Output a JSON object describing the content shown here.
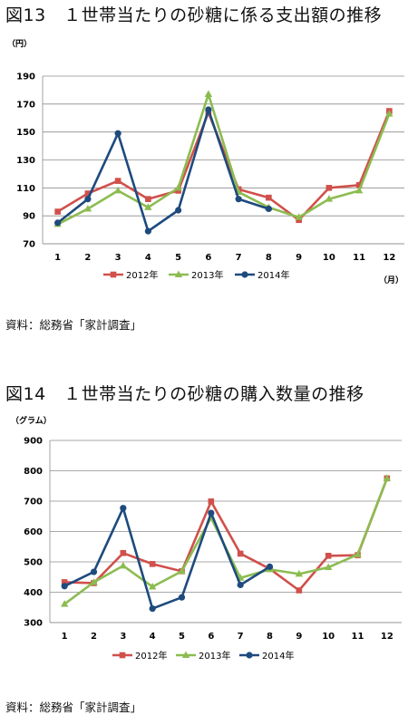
{
  "figures": [
    {
      "title": "図13　１世帯当たりの砂糖に係る支出額の推移",
      "source": "資料：総務省「家計調査」"
    },
    {
      "title": "図14　１世帯当たりの砂糖の購入数量の推移",
      "source": "資料：総務省「家計調査」"
    }
  ],
  "chart_data": [
    {
      "type": "line",
      "title": "図13　１世帯当たりの砂糖に係る支出額の推移",
      "ylabel": "（円）",
      "xlabel": "（月）",
      "categories": [
        "1",
        "2",
        "3",
        "4",
        "5",
        "6",
        "7",
        "8",
        "9",
        "10",
        "11",
        "12"
      ],
      "ylim": [
        70,
        190
      ],
      "yticks": [
        70,
        90,
        110,
        130,
        150,
        170,
        190
      ],
      "grid": "horizontal",
      "legend": "bottom",
      "series": [
        {
          "name": "2012年",
          "color": "#d0504b",
          "marker": "square",
          "values": [
            93,
            106,
            115,
            102,
            108,
            164,
            109,
            103,
            87,
            110,
            112,
            165
          ]
        },
        {
          "name": "2013年",
          "color": "#8cbc50",
          "marker": "triangle",
          "values": [
            84,
            95,
            108,
            96,
            110,
            177,
            107,
            96,
            89,
            102,
            108,
            163
          ]
        },
        {
          "name": "2014年",
          "color": "#1e4a7e",
          "marker": "circle",
          "values": [
            85,
            102,
            149,
            79,
            94,
            166,
            102,
            95,
            null,
            null,
            null,
            null
          ]
        }
      ]
    },
    {
      "type": "line",
      "title": "図14　１世帯当たりの砂糖の購入数量の推移",
      "ylabel": "（グラム）",
      "xlabel": "",
      "categories": [
        "1",
        "2",
        "3",
        "4",
        "5",
        "6",
        "7",
        "8",
        "9",
        "10",
        "11",
        "12"
      ],
      "ylim": [
        300,
        900
      ],
      "yticks": [
        300,
        400,
        500,
        600,
        700,
        800,
        900
      ],
      "grid": "horizontal",
      "legend": "bottom",
      "series": [
        {
          "name": "2012年",
          "color": "#d0504b",
          "marker": "square",
          "values": [
            433,
            430,
            529,
            493,
            469,
            699,
            527,
            477,
            406,
            520,
            522,
            775
          ]
        },
        {
          "name": "2013年",
          "color": "#8cbc50",
          "marker": "triangle",
          "values": [
            361,
            433,
            487,
            418,
            469,
            645,
            447,
            475,
            460,
            482,
            524,
            775
          ]
        },
        {
          "name": "2014年",
          "color": "#1e4a7e",
          "marker": "circle",
          "values": [
            420,
            467,
            677,
            346,
            383,
            661,
            424,
            484,
            null,
            null,
            null,
            null
          ]
        }
      ]
    }
  ]
}
